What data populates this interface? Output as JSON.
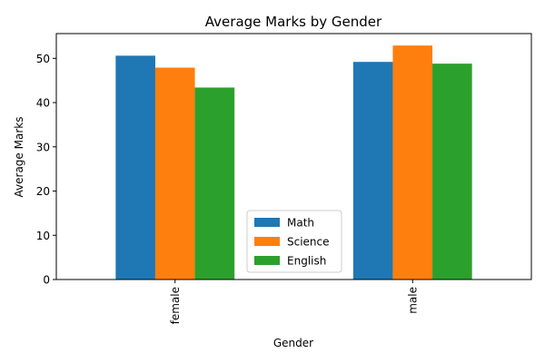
{
  "chart_data": {
    "type": "bar",
    "title": "Average Marks by Gender",
    "xlabel": "Gender",
    "ylabel": "Average Marks",
    "categories": [
      "female",
      "male"
    ],
    "series": [
      {
        "name": "Math",
        "color": "#1f77b4",
        "values": [
          50.6,
          49.2
        ]
      },
      {
        "name": "Science",
        "color": "#ff7f0e",
        "values": [
          47.9,
          52.9
        ]
      },
      {
        "name": "English",
        "color": "#2ca02c",
        "values": [
          43.4,
          48.8
        ]
      }
    ],
    "ylim": [
      0,
      55.6
    ],
    "yticks": [
      0,
      10,
      20,
      30,
      40,
      50
    ],
    "legend": "lower-center",
    "grid": false
  }
}
